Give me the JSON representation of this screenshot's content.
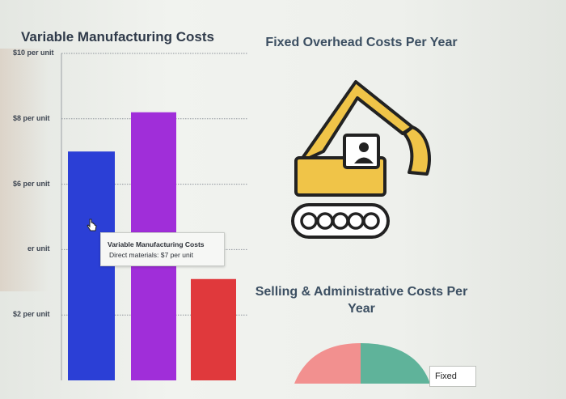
{
  "variable_chart": {
    "title": "Variable Manufacturing Costs"
  },
  "fixed_overhead": {
    "title": "Fixed Overhead Costs Per Year",
    "icon": "excavator-icon",
    "color": "#f0c448"
  },
  "selling_admin": {
    "title": "Selling & Administrative Costs Per Year",
    "legend_fixed": "Fixed",
    "colors": [
      "#f2908f",
      "#5fb39a"
    ]
  },
  "tooltip": {
    "title": "Variable Manufacturing Costs",
    "line": "Direct materials: $7 per unit"
  },
  "chart_data": {
    "type": "bar",
    "title": "Variable Manufacturing Costs",
    "tick_labels": [
      "$10 per unit",
      "$8 per unit",
      "$6 per unit",
      "er unit",
      "$2 per unit"
    ],
    "tick_values": [
      10,
      8,
      6,
      4,
      2
    ],
    "ylim": [
      0,
      10
    ],
    "grid": true,
    "values": [
      7,
      8.2,
      3.1
    ],
    "colors": [
      "#2b3fd6",
      "#a02ed9",
      "#e0393c"
    ]
  }
}
